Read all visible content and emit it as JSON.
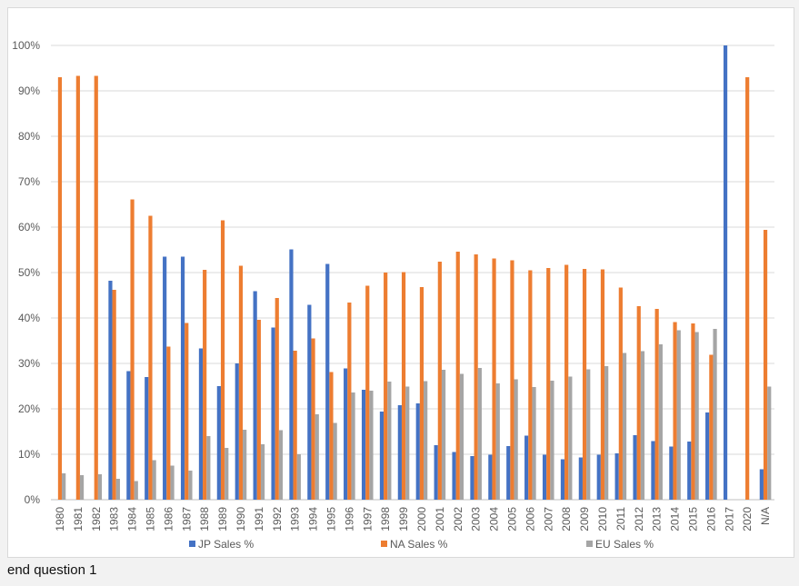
{
  "caption": "end question 1",
  "chart_data": {
    "type": "bar",
    "title": "",
    "xlabel": "",
    "ylabel": "",
    "ylim": [
      0,
      100
    ],
    "y_ticks": [
      "0%",
      "10%",
      "20%",
      "30%",
      "40%",
      "50%",
      "60%",
      "70%",
      "80%",
      "90%",
      "100%"
    ],
    "grid": true,
    "legend_position": "bottom",
    "categories": [
      "1980",
      "1981",
      "1982",
      "1983",
      "1984",
      "1985",
      "1986",
      "1987",
      "1988",
      "1989",
      "1990",
      "1991",
      "1992",
      "1993",
      "1994",
      "1995",
      "1996",
      "1997",
      "1998",
      "1999",
      "2000",
      "2001",
      "2002",
      "2003",
      "2004",
      "2005",
      "2006",
      "2007",
      "2008",
      "2009",
      "2010",
      "2011",
      "2012",
      "2013",
      "2014",
      "2015",
      "2016",
      "2017",
      "2020",
      "N/A"
    ],
    "series": [
      {
        "name": "JP Sales %",
        "color": "#4472c4",
        "values": [
          0,
          0,
          0,
          48.2,
          28.3,
          27,
          53.5,
          53.5,
          33.3,
          25,
          30,
          45.9,
          37.9,
          55.1,
          42.9,
          51.9,
          28.9,
          24.2,
          19.4,
          20.8,
          21.2,
          12,
          10.5,
          9.6,
          9.9,
          11.8,
          14.1,
          9.9,
          8.9,
          9.3,
          9.9,
          10.2,
          14.2,
          12.9,
          11.7,
          12.8,
          19.2,
          100,
          0,
          6.7
        ]
      },
      {
        "name": "NA Sales %",
        "color": "#ed7d31",
        "values": [
          93,
          93.3,
          93.3,
          46.2,
          66.1,
          62.5,
          33.7,
          38.9,
          50.6,
          61.5,
          51.5,
          39.6,
          44.4,
          32.8,
          35.5,
          28.1,
          43.4,
          47.1,
          50,
          50.1,
          46.8,
          52.4,
          54.6,
          54,
          53.1,
          52.7,
          50.5,
          51,
          51.7,
          50.8,
          50.7,
          46.7,
          42.6,
          42,
          39.1,
          38.8,
          31.9,
          0,
          93,
          59.4
        ]
      },
      {
        "name": "EU Sales %",
        "color": "#a5a5a5",
        "values": [
          5.8,
          5.4,
          5.6,
          4.6,
          4.1,
          8.7,
          7.5,
          6.4,
          14,
          11.4,
          15.4,
          12.2,
          15.3,
          10,
          18.8,
          16.9,
          23.6,
          24,
          26,
          24.9,
          26.1,
          28.6,
          27.7,
          29,
          25.6,
          26.5,
          24.8,
          26.2,
          27.1,
          28.7,
          29.4,
          32.3,
          32.7,
          34.2,
          37.3,
          36.9,
          37.6,
          0,
          0,
          24.9
        ]
      }
    ]
  }
}
